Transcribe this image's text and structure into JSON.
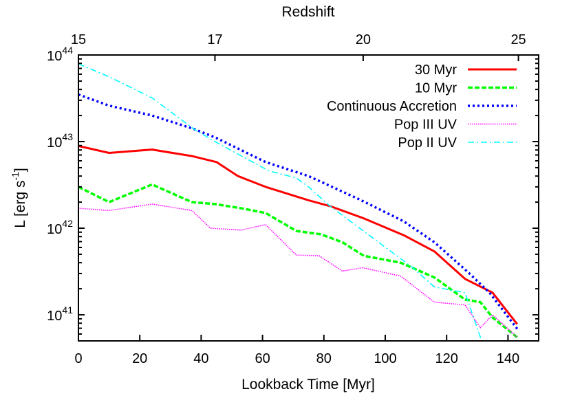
{
  "chart_data": {
    "type": "line",
    "xlabel": "Lookback Time [Myr]",
    "ylabel": "L [erg s",
    "ylabel_sup": "-1",
    "ylabel_end": "]",
    "top_xlabel": "Redshift",
    "xlim": [
      0,
      150
    ],
    "ylim": [
      5e+40,
      1e+44
    ],
    "yscale": "log",
    "x_ticks": [
      0,
      20,
      40,
      60,
      80,
      100,
      120,
      140
    ],
    "y_ticks": [
      {
        "value": 1e+41,
        "base": "10",
        "exp": "41"
      },
      {
        "value": 1e+42,
        "base": "10",
        "exp": "42"
      },
      {
        "value": 1e+43,
        "base": "10",
        "exp": "43"
      },
      {
        "value": 1e+44,
        "base": "10",
        "exp": "44"
      }
    ],
    "top_ticks": [
      {
        "label": "15",
        "lookback": 0
      },
      {
        "label": "17",
        "lookback": 44.5
      },
      {
        "label": "20",
        "lookback": 92.8
      },
      {
        "label": "25",
        "lookback": 143.4
      }
    ],
    "grid": false,
    "legend_placement": "top-right",
    "series": [
      {
        "name": "30 Myr",
        "color": "#ff0000",
        "style": "solid",
        "x": [
          0,
          10,
          24,
          37,
          45,
          52,
          61,
          75,
          82,
          93,
          106,
          116,
          126,
          135,
          143
        ],
        "y": [
          8.9e+42,
          7.4e+42,
          8.1e+42,
          6.8e+42,
          5.8e+42,
          4e+42,
          3e+42,
          2.1e+42,
          1.8e+42,
          1.3e+42,
          8.3e+41,
          5.4e+41,
          2.6e+41,
          1.8e+41,
          7.8e+40
        ]
      },
      {
        "name": "10 Myr",
        "color": "#00ff00",
        "style": "dashed",
        "x": [
          0,
          10,
          24,
          37,
          44.5,
          53,
          61,
          71,
          79,
          86,
          93,
          105,
          116,
          126,
          131,
          135,
          143
        ],
        "y": [
          3e+42,
          2e+42,
          3.2e+42,
          2e+42,
          1.9e+42,
          1.7e+42,
          1.5e+42,
          9.3e+41,
          8.5e+41,
          6.9e+41,
          4.8e+41,
          4e+41,
          2.7e+41,
          1.5e+41,
          1.4e+41,
          9.3e+40,
          5.5e+40
        ]
      },
      {
        "name": "Continuous Accretion",
        "color": "#0000ff",
        "style": "dotted",
        "x": [
          0,
          10,
          24,
          37.6,
          45,
          61,
          75,
          91,
          106,
          116,
          127,
          134,
          143
        ],
        "y": [
          3.5e+43,
          2.6e+43,
          2e+43,
          1.4e+43,
          1.1e+43,
          5.8e+42,
          4e+42,
          2.2e+42,
          1.2e+42,
          6.9e+41,
          3.1e+41,
          1.8e+41,
          6.9e+40
        ]
      },
      {
        "name": "Pop III UV",
        "color": "#ff00ff",
        "style": "fine-dotted",
        "x": [
          0,
          10,
          24,
          37,
          43,
          53,
          61,
          71,
          78.5,
          86,
          92.6,
          105,
          116,
          126,
          131,
          135,
          143
        ],
        "y": [
          1.7e+42,
          1.6e+42,
          1.9e+42,
          1.6e+42,
          1e+42,
          9.5e+41,
          1.1e+42,
          4.9e+41,
          4.8e+41,
          3.2e+41,
          3.5e+41,
          2.8e+41,
          1.4e+41,
          1.3e+41,
          7.1e+40,
          1e+41,
          5.5e+40
        ]
      },
      {
        "name": "Pop II UV",
        "color": "#00ffff",
        "style": "dash-dot",
        "x": [
          0,
          10,
          24,
          37.6,
          44.5,
          62,
          71,
          75,
          82,
          109,
          116,
          126,
          131,
          133
        ],
        "y": [
          7.9e+43,
          5.6e+43,
          3.2e+43,
          1.4e+43,
          1e+43,
          4.6e+42,
          3.8e+42,
          3e+42,
          1.8e+42,
          3.5e+41,
          2.1e+41,
          1.8e+41,
          5.5e+40,
          4e+40
        ]
      }
    ]
  }
}
